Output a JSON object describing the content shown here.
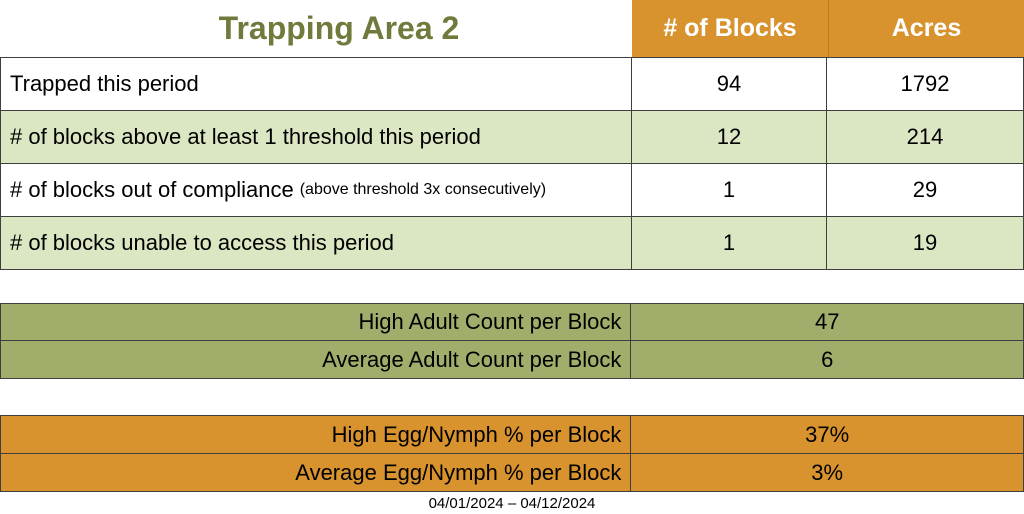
{
  "title": "Trapping Area 2",
  "colors": {
    "accent_orange": "#d8932e",
    "light_green_row": "#dbe6c2",
    "olive_green_table": "#a0ae6b",
    "title_text": "#6f7b3c",
    "border": "#3f3f3f"
  },
  "main_table": {
    "columns": {
      "blocks": "# of Blocks",
      "acres": "Acres"
    },
    "rows": [
      {
        "label": "Trapped this period",
        "blocks": "94",
        "acres": "1792"
      },
      {
        "label": "# of blocks above at least 1 threshold this period",
        "blocks": "12",
        "acres": "214"
      },
      {
        "label": "# of blocks out of compliance",
        "note": "(above threshold 3x consecutively)",
        "blocks": "1",
        "acres": "29"
      },
      {
        "label": "# of blocks unable to access this period",
        "blocks": "1",
        "acres": "19"
      }
    ]
  },
  "adult_table": {
    "rows": [
      {
        "label": "High Adult Count per Block",
        "value": "47"
      },
      {
        "label": "Average Adult Count per Block",
        "value": "6"
      }
    ]
  },
  "egg_table": {
    "rows": [
      {
        "label": "High Egg/Nymph % per Block",
        "value": "37%"
      },
      {
        "label": "Average Egg/Nymph % per Block",
        "value": "3%"
      }
    ]
  },
  "footer": {
    "date_range": "04/01/2024 – 04/12/2024"
  }
}
